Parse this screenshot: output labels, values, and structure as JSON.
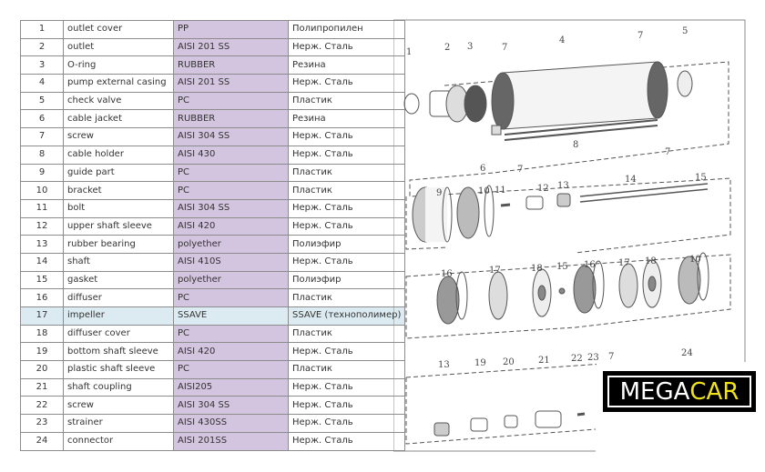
{
  "table": {
    "rows": [
      {
        "num": "1",
        "name": "outlet cover",
        "material": "PP",
        "material_ru": "Полипропилен"
      },
      {
        "num": "2",
        "name": "outlet",
        "material": "AISI 201 SS",
        "material_ru": "Нерж. Сталь"
      },
      {
        "num": "3",
        "name": "O-ring",
        "material": "RUBBER",
        "material_ru": "Резина"
      },
      {
        "num": "4",
        "name": "pump external casing",
        "material": "AISI 201 SS",
        "material_ru": "Нерж. Сталь"
      },
      {
        "num": "5",
        "name": "check valve",
        "material": "PC",
        "material_ru": "Пластик"
      },
      {
        "num": "6",
        "name": "cable jacket",
        "material": "RUBBER",
        "material_ru": "Резина"
      },
      {
        "num": "7",
        "name": "screw",
        "material": "AISI 304 SS",
        "material_ru": "Нерж. Сталь"
      },
      {
        "num": "8",
        "name": "cable holder",
        "material": "AISI 430",
        "material_ru": "Нерж. Сталь"
      },
      {
        "num": "9",
        "name": "guide part",
        "material": "PC",
        "material_ru": "Пластик"
      },
      {
        "num": "10",
        "name": "bracket",
        "material": "PC",
        "material_ru": "Пластик"
      },
      {
        "num": "11",
        "name": "bolt",
        "material": "AISI 304 SS",
        "material_ru": "Нерж. Сталь"
      },
      {
        "num": "12",
        "name": "upper shaft sleeve",
        "material": "AISI 420",
        "material_ru": "Нерж. Сталь"
      },
      {
        "num": "13",
        "name": "rubber bearing",
        "material": "polyether",
        "material_ru": "Полиэфир"
      },
      {
        "num": "14",
        "name": "shaft",
        "material": "AISI 410S",
        "material_ru": "Нерж. Сталь"
      },
      {
        "num": "15",
        "name": "gasket",
        "material": "polyether",
        "material_ru": "Полиэфир"
      },
      {
        "num": "16",
        "name": "diffuser",
        "material": "PC",
        "material_ru": "Пластик"
      },
      {
        "num": "17",
        "name": "impeller",
        "material": "SSAVE",
        "material_ru": "SSAVE (технополимер)",
        "highlighted": true
      },
      {
        "num": "18",
        "name": "diffuser cover",
        "material": "PC",
        "material_ru": "Пластик"
      },
      {
        "num": "19",
        "name": "bottom shaft sleeve",
        "material": "AISI 420",
        "material_ru": "Нерж. Сталь"
      },
      {
        "num": "20",
        "name": "plastic shaft sleeve",
        "material": "PC",
        "material_ru": "Пластик"
      },
      {
        "num": "21",
        "name": "shaft coupling",
        "material": "AISI205",
        "material_ru": "Нерж. Сталь"
      },
      {
        "num": "22",
        "name": "screw",
        "material": "AISI 304 SS",
        "material_ru": "Нерж. Сталь"
      },
      {
        "num": "23",
        "name": "strainer",
        "material": "AISI 430SS",
        "material_ru": "Нерж. Сталь"
      },
      {
        "num": "24",
        "name": "connector",
        "material": "AISI 201SS",
        "material_ru": "Нерж. Сталь"
      }
    ]
  },
  "diagram": {
    "callouts": [
      "1",
      "2",
      "3",
      "7",
      "4",
      "7",
      "5",
      "6",
      "7",
      "8",
      "7",
      "9",
      "10",
      "11",
      "12",
      "13",
      "14",
      "15",
      "16",
      "17",
      "18",
      "15",
      "16",
      "17",
      "18",
      "10",
      "13",
      "19",
      "20",
      "21",
      "22",
      "23",
      "7",
      "24"
    ]
  },
  "logo": {
    "part1": "MEGA",
    "part2": "CAR",
    "colors": {
      "background": "#000000",
      "part1": "#ffffff",
      "part2": "#f0e21c"
    }
  },
  "colors": {
    "material_column": "#d3c4df",
    "highlight_row": "#dcebf1"
  }
}
